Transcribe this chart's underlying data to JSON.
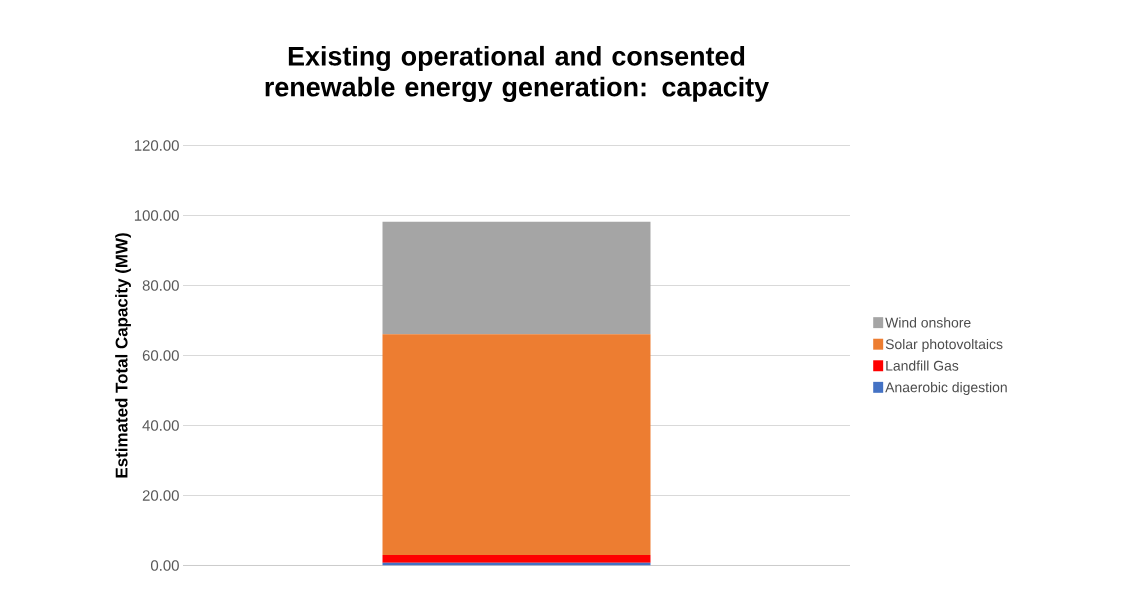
{
  "chart_data": {
    "type": "bar",
    "stacked": true,
    "title": "Existing operational and consented renewable energy generation: capacity",
    "ylabel": "Estimated Total Capacity (MW)",
    "categories": [
      null
    ],
    "series": [
      {
        "name": "Anaerobic digestion",
        "color": "#4472c4",
        "values": [
          0.8
        ]
      },
      {
        "name": "Landfill Gas",
        "color": "#ff0000",
        "values": [
          2.2
        ]
      },
      {
        "name": "Solar photovoltaics",
        "color": "#ed7d31",
        "values": [
          63.1
        ]
      },
      {
        "name": "Wind onshore",
        "color": "#a5a5a5",
        "values": [
          32.1
        ]
      }
    ],
    "ylim": [
      0,
      120
    ],
    "yticks": [
      {
        "value": 0,
        "label": "0.00"
      },
      {
        "value": 20,
        "label": "20.00"
      },
      {
        "value": 40,
        "label": "40.00"
      },
      {
        "value": 60,
        "label": "60.00"
      },
      {
        "value": 80,
        "label": "80.00"
      },
      {
        "value": 100,
        "label": "100.00"
      },
      {
        "value": 120,
        "label": "120.00"
      }
    ],
    "grid": "y",
    "legend": "right"
  }
}
